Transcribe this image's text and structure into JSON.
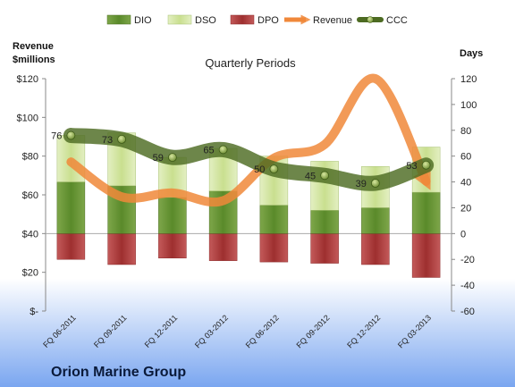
{
  "chart_data": {
    "type": "bar",
    "title": "Quarterly Periods",
    "company": "Orion Marine Group",
    "y_left_label": [
      "Revenue",
      "$millions"
    ],
    "y_right_label": "Days",
    "y_left_ticks": [
      "$-",
      "$20",
      "$40",
      "$60",
      "$80",
      "$100",
      "$120"
    ],
    "y_right_ticks": [
      "-60",
      "-40",
      "-20",
      "0",
      "20",
      "40",
      "60",
      "80",
      "100",
      "120"
    ],
    "y_right_range": [
      -60,
      120
    ],
    "y_left_range": [
      0,
      120
    ],
    "categories": [
      "FQ 06-2011",
      "FQ 09-2011",
      "FQ 12-2011",
      "FQ 03-2012",
      "FQ 06-2012",
      "FQ 09-2012",
      "FQ 12-2012",
      "FQ 03-2013"
    ],
    "legend": [
      "DIO",
      "DSO",
      "DPO",
      "Revenue",
      "CCC"
    ],
    "series": [
      {
        "name": "DIO",
        "axis": "right",
        "values": [
          40,
          37,
          28,
          33,
          22,
          18,
          20,
          32
        ]
      },
      {
        "name": "DSO",
        "axis": "right",
        "values": [
          36,
          41,
          31,
          33,
          38,
          38,
          32,
          35
        ]
      },
      {
        "name": "DPO",
        "axis": "right",
        "values": [
          -20,
          -24,
          -19,
          -21,
          -22,
          -23,
          -24,
          -34
        ]
      },
      {
        "name": "Revenue",
        "axis": "left",
        "values": [
          77,
          59,
          61,
          57,
          79,
          86,
          120,
          67
        ]
      },
      {
        "name": "CCC",
        "axis": "right",
        "values": [
          76,
          73,
          59,
          65,
          50,
          45,
          39,
          53
        ]
      }
    ],
    "ccc_labels": [
      "76",
      "73",
      "59",
      "65",
      "50",
      "45",
      "39",
      "53"
    ],
    "colors": {
      "DIO": "#5e8a2e",
      "DSO": "#d3e6a4",
      "DPO": "#b23a3a",
      "Revenue": "#f0883a",
      "CCC": "#4d6b22"
    },
    "grid": false,
    "legend_position": "top"
  }
}
